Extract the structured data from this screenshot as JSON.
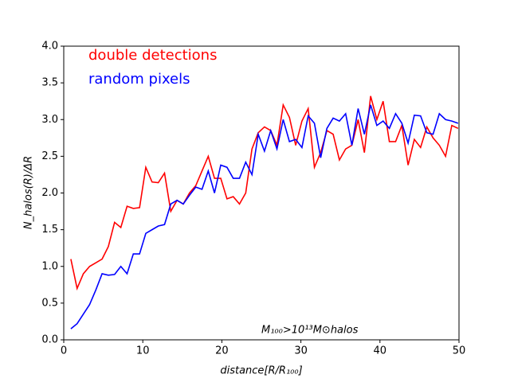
{
  "chart_data": {
    "type": "line",
    "xlabel": "distance[R/R₁₀₀]",
    "ylabel": "N_halos(R)/ΔR",
    "annotation": "M₁₀₀>10¹³M⊙halos",
    "x": [
      0.9,
      1.69,
      2.48,
      3.27,
      4.06,
      4.85,
      5.64,
      6.43,
      7.22,
      8.01,
      8.8,
      9.59,
      10.38,
      11.17,
      11.96,
      12.75,
      13.54,
      14.33,
      15.12,
      15.91,
      16.7,
      17.49,
      18.28,
      19.07,
      19.86,
      20.65,
      21.44,
      22.23,
      23.02,
      23.81,
      24.6,
      25.39,
      26.18,
      26.97,
      27.76,
      28.55,
      29.34,
      30.13,
      30.92,
      31.71,
      32.5,
      33.29,
      34.08,
      34.87,
      35.66,
      36.45,
      37.24,
      38.03,
      38.82,
      39.61,
      40.4,
      41.19,
      41.98,
      42.77,
      43.56,
      44.35,
      45.14,
      45.93,
      46.72,
      47.51,
      48.3,
      49.09,
      49.88
    ],
    "series": [
      {
        "name": "double detections",
        "color": "#ff0000",
        "values": [
          1.1,
          0.7,
          0.9,
          1.0,
          1.05,
          1.1,
          1.27,
          1.6,
          1.53,
          1.82,
          1.79,
          1.8,
          2.35,
          2.15,
          2.14,
          2.27,
          1.75,
          1.9,
          1.85,
          2.0,
          2.1,
          2.3,
          2.5,
          2.2,
          2.2,
          1.92,
          1.95,
          1.85,
          2.0,
          2.6,
          2.82,
          2.9,
          2.85,
          2.65,
          3.2,
          3.03,
          2.65,
          2.98,
          3.15,
          2.35,
          2.55,
          2.85,
          2.8,
          2.45,
          2.6,
          2.65,
          3.0,
          2.55,
          3.32,
          3.0,
          3.25,
          2.7,
          2.7,
          2.92,
          2.38,
          2.73,
          2.62,
          2.9,
          2.75,
          2.65,
          2.5,
          2.92,
          2.88
        ]
      },
      {
        "name": "random pixels",
        "color": "#0000ff",
        "values": [
          0.15,
          0.22,
          0.35,
          0.48,
          0.68,
          0.9,
          0.88,
          0.89,
          1.0,
          0.9,
          1.17,
          1.17,
          1.45,
          1.5,
          1.55,
          1.57,
          1.85,
          1.9,
          1.85,
          1.97,
          2.08,
          2.05,
          2.3,
          2.0,
          2.38,
          2.35,
          2.2,
          2.2,
          2.42,
          2.25,
          2.8,
          2.57,
          2.85,
          2.6,
          3.0,
          2.7,
          2.73,
          2.62,
          3.05,
          2.95,
          2.48,
          2.88,
          3.02,
          2.98,
          3.08,
          2.65,
          3.15,
          2.8,
          3.2,
          2.92,
          2.98,
          2.88,
          3.08,
          2.95,
          2.68,
          3.06,
          3.05,
          2.82,
          2.8,
          3.08,
          3.0,
          2.98,
          2.95
        ]
      }
    ],
    "xlim": [
      0,
      50
    ],
    "xticks": [
      0,
      10,
      20,
      30,
      40,
      50
    ],
    "ylim": [
      0,
      4
    ],
    "yticks": [
      {
        "value": 0,
        "label": "0.0"
      },
      {
        "value": 0.5,
        "label": "0.5"
      },
      {
        "value": 1,
        "label": "1.0"
      },
      {
        "value": 1.5,
        "label": "1.5"
      },
      {
        "value": 2,
        "label": "2.0"
      },
      {
        "value": 2.5,
        "label": "2.5"
      },
      {
        "value": 3,
        "label": "3.0"
      },
      {
        "value": 3.5,
        "label": "3.5"
      },
      {
        "value": 4,
        "label": "4.0"
      }
    ],
    "grid": false
  }
}
